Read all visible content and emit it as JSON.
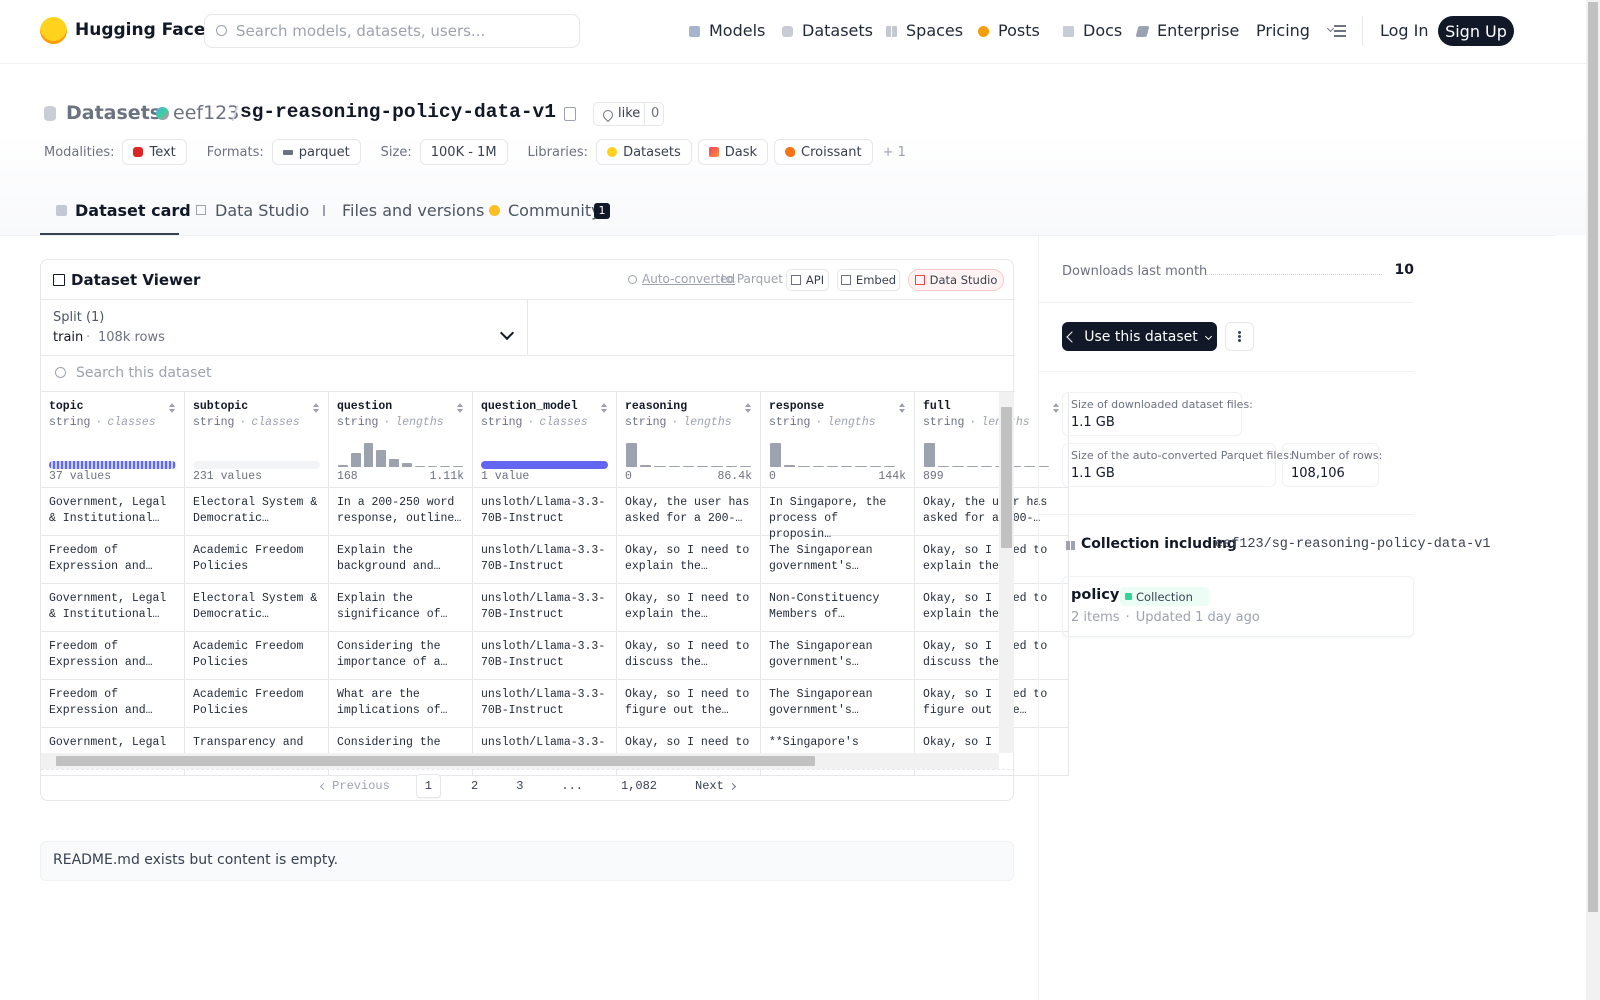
{
  "header": {
    "brand": "Hugging Face",
    "search_placeholder": "Search models, datasets, users...",
    "nav": [
      "Models",
      "Datasets",
      "Spaces",
      "Posts",
      "Docs",
      "Enterprise",
      "Pricing"
    ],
    "login": "Log In",
    "signup": "Sign Up"
  },
  "repo": {
    "kind": "Datasets:",
    "owner": "eef123",
    "separator": "/",
    "name": "sg-reasoning-policy-data-v1",
    "like": "like",
    "likes": 0,
    "tag_groups": [
      {
        "label": "Modalities:",
        "items": [
          "Text"
        ]
      },
      {
        "label": "Formats:",
        "items": [
          "parquet"
        ]
      },
      {
        "label": "Size:",
        "items": [
          "100K - 1M"
        ]
      },
      {
        "label": "Libraries:",
        "items": [
          "Datasets",
          "Dask",
          "Croissant"
        ]
      }
    ],
    "more": "+ 1"
  },
  "tabs": [
    {
      "label": "Dataset card"
    },
    {
      "label": "Data Studio"
    },
    {
      "label": "Files and versions"
    },
    {
      "label": "Community",
      "badge": 1
    }
  ],
  "viewer": {
    "title": "Dataset Viewer",
    "auto_converted": "Auto-converted",
    "to_parquet": "to Parquet",
    "buttons": [
      "API",
      "Embed",
      "Data Studio"
    ],
    "split_label": "Split (1)",
    "split": "train",
    "split_separator": "·",
    "split_rows": "108k rows",
    "search_placeholder": "Search this dataset",
    "type_separator": "·",
    "columns": [
      {
        "name": "topic",
        "dtype": "string",
        "stat": "classes",
        "summary_left": "37 values"
      },
      {
        "name": "subtopic",
        "dtype": "string",
        "stat": "classes",
        "summary_left": "231 values"
      },
      {
        "name": "question",
        "dtype": "string",
        "stat": "lengths",
        "summary_left": "168",
        "summary_right": "1.11k",
        "histogram": [
          2,
          14,
          24,
          17,
          8,
          4,
          1,
          1,
          1,
          1
        ]
      },
      {
        "name": "question_model",
        "dtype": "string",
        "stat": "classes",
        "summary_left": "1 value"
      },
      {
        "name": "reasoning",
        "dtype": "string",
        "stat": "lengths",
        "summary_left": "0",
        "summary_right": "86.4k",
        "histogram": [
          24,
          2,
          1,
          1,
          1,
          1,
          1,
          1,
          1
        ]
      },
      {
        "name": "response",
        "dtype": "string",
        "stat": "lengths",
        "summary_left": "0",
        "summary_right": "144k",
        "histogram": [
          24,
          2,
          1,
          1,
          1,
          1,
          1,
          1,
          1
        ]
      },
      {
        "name": "full",
        "dtype": "string",
        "stat": "lengths",
        "summary_left": "899",
        "histogram": [
          24,
          1,
          1,
          1,
          1,
          1,
          1,
          1,
          1
        ]
      }
    ],
    "rows": [
      [
        "Government, Legal & Institutional…",
        "Electoral System & Democratic…",
        "In a 200-250 word response, outline…",
        "unsloth/Llama-3.3-70B-Instruct",
        "Okay, the user has asked for a 200-…",
        "In Singapore, the process of proposin…",
        "Okay, the user has asked for a 200-…"
      ],
      [
        "Freedom of Expression and…",
        "Academic Freedom Policies",
        "Explain the background and…",
        "unsloth/Llama-3.3-70B-Instruct",
        "Okay, so I need to explain the…",
        "The Singaporean government's…",
        "Okay, so I need to explain the…"
      ],
      [
        "Government, Legal & Institutional…",
        "Electoral System & Democratic…",
        "Explain the significance of…",
        "unsloth/Llama-3.3-70B-Instruct",
        "Okay, so I need to explain the…",
        "Non-Constituency Members of…",
        "Okay, so I need to explain the…"
      ],
      [
        "Freedom of Expression and…",
        "Academic Freedom Policies",
        "Considering the importance of a…",
        "unsloth/Llama-3.3-70B-Instruct",
        "Okay, so I need to discuss the…",
        "The Singaporean government's…",
        "Okay, so I need to discuss the…"
      ],
      [
        "Freedom of Expression and…",
        "Academic Freedom Policies",
        "What are the implications of…",
        "unsloth/Llama-3.3-70B-Instruct",
        "Okay, so I need to figure out the…",
        "The Singaporean government's…",
        "Okay, so I need to figure out the…"
      ],
      [
        "Government, Legal",
        "Transparency and",
        "Considering the",
        "unsloth/Llama-3.3-",
        "Okay, so I need to",
        "**Singapore's",
        "Okay, so I"
      ]
    ],
    "pagination": {
      "previous": "Previous",
      "pages": [
        "1",
        "2",
        "3",
        "...",
        "1,082"
      ],
      "next": "Next"
    }
  },
  "readme": "README.md exists but content is empty.",
  "sidebar": {
    "downloads_label": "Downloads last month",
    "downloads": 10,
    "use_dataset": "Use this dataset",
    "stats": [
      {
        "label": "Size of downloaded dataset files:",
        "value": "1.1 GB"
      },
      {
        "label": "Size of the auto-converted Parquet files:",
        "value": "1.1 GB"
      },
      {
        "label": "Number of rows:",
        "value": "108,106"
      }
    ],
    "collection": {
      "heading": "Collection including",
      "repo": "eef123/sg-reasoning-policy-data-v1",
      "name": "policy",
      "badge": "Collection",
      "items": "2 items",
      "separator": "·",
      "updated": "Updated 1 day ago"
    }
  }
}
